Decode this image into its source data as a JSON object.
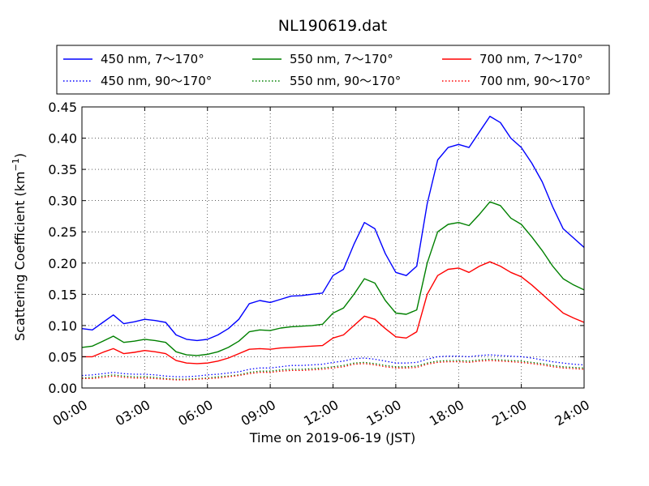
{
  "chart_data": {
    "type": "line",
    "title": "NL190619.dat",
    "xlabel": "Time on 2019-06-19 (JST)",
    "ylabel_main": "Scattering Coefficient (km",
    "ylabel_exp": "−1",
    "ylabel_close": ")",
    "xlim": [
      0,
      24
    ],
    "ylim": [
      0,
      0.45
    ],
    "x_ticks": [
      "00:00",
      "03:00",
      "06:00",
      "09:00",
      "12:00",
      "15:00",
      "18:00",
      "21:00",
      "24:00"
    ],
    "y_ticks": [
      "0.00",
      "0.05",
      "0.10",
      "0.15",
      "0.20",
      "0.25",
      "0.30",
      "0.35",
      "0.40",
      "0.45"
    ],
    "grid": true,
    "legend_position": "top",
    "x": [
      0,
      0.5,
      1,
      1.5,
      2,
      2.5,
      3,
      3.5,
      4,
      4.5,
      5,
      5.5,
      6,
      6.5,
      7,
      7.5,
      8,
      8.5,
      9,
      9.5,
      10,
      10.5,
      11,
      11.5,
      12,
      12.5,
      13,
      13.5,
      14,
      14.5,
      15,
      15.5,
      16,
      16.5,
      17,
      17.5,
      18,
      18.5,
      19,
      19.5,
      20,
      20.5,
      21,
      21.5,
      22,
      22.5,
      23,
      23.5,
      24
    ],
    "series": [
      {
        "name": "450 nm, 7～170°",
        "color": "#0000ff",
        "style": "solid",
        "values": [
          0.095,
          0.093,
          0.105,
          0.117,
          0.103,
          0.106,
          0.11,
          0.108,
          0.105,
          0.085,
          0.078,
          0.076,
          0.078,
          0.085,
          0.095,
          0.11,
          0.135,
          0.14,
          0.137,
          0.142,
          0.147,
          0.148,
          0.15,
          0.152,
          0.18,
          0.19,
          0.23,
          0.265,
          0.255,
          0.215,
          0.185,
          0.18,
          0.195,
          0.295,
          0.365,
          0.385,
          0.39,
          0.385,
          0.41,
          0.435,
          0.425,
          0.4,
          0.385,
          0.36,
          0.33,
          0.29,
          0.255,
          0.24,
          0.225
        ]
      },
      {
        "name": "450 nm, 90～170°",
        "color": "#0000ff",
        "style": "dotted",
        "values": [
          0.02,
          0.021,
          0.023,
          0.025,
          0.023,
          0.022,
          0.022,
          0.021,
          0.019,
          0.018,
          0.018,
          0.019,
          0.021,
          0.022,
          0.024,
          0.026,
          0.03,
          0.032,
          0.032,
          0.034,
          0.036,
          0.036,
          0.037,
          0.038,
          0.041,
          0.043,
          0.047,
          0.048,
          0.046,
          0.043,
          0.04,
          0.04,
          0.041,
          0.046,
          0.05,
          0.051,
          0.051,
          0.05,
          0.052,
          0.053,
          0.052,
          0.051,
          0.05,
          0.048,
          0.045,
          0.042,
          0.04,
          0.038,
          0.037
        ]
      },
      {
        "name": "550 nm, 7～170°",
        "color": "#008000",
        "style": "solid",
        "values": [
          0.065,
          0.067,
          0.075,
          0.083,
          0.073,
          0.075,
          0.078,
          0.076,
          0.073,
          0.058,
          0.053,
          0.052,
          0.054,
          0.058,
          0.065,
          0.075,
          0.09,
          0.093,
          0.092,
          0.096,
          0.098,
          0.099,
          0.1,
          0.102,
          0.12,
          0.128,
          0.15,
          0.175,
          0.168,
          0.14,
          0.12,
          0.118,
          0.125,
          0.2,
          0.25,
          0.262,
          0.265,
          0.26,
          0.278,
          0.298,
          0.292,
          0.272,
          0.262,
          0.242,
          0.22,
          0.195,
          0.175,
          0.165,
          0.157
        ]
      },
      {
        "name": "550 nm, 90～170°",
        "color": "#008000",
        "style": "dotted",
        "values": [
          0.016,
          0.017,
          0.019,
          0.021,
          0.019,
          0.018,
          0.018,
          0.017,
          0.015,
          0.014,
          0.014,
          0.015,
          0.016,
          0.018,
          0.019,
          0.021,
          0.025,
          0.027,
          0.027,
          0.029,
          0.03,
          0.03,
          0.031,
          0.032,
          0.034,
          0.036,
          0.04,
          0.041,
          0.039,
          0.036,
          0.034,
          0.034,
          0.035,
          0.04,
          0.043,
          0.044,
          0.044,
          0.043,
          0.045,
          0.046,
          0.045,
          0.044,
          0.043,
          0.041,
          0.039,
          0.036,
          0.034,
          0.033,
          0.032
        ]
      },
      {
        "name": "700 nm, 7～170°",
        "color": "#ff0000",
        "style": "solid",
        "values": [
          0.05,
          0.05,
          0.057,
          0.063,
          0.055,
          0.057,
          0.06,
          0.058,
          0.055,
          0.044,
          0.04,
          0.039,
          0.04,
          0.043,
          0.048,
          0.055,
          0.062,
          0.063,
          0.062,
          0.064,
          0.065,
          0.066,
          0.067,
          0.068,
          0.08,
          0.085,
          0.1,
          0.115,
          0.11,
          0.095,
          0.082,
          0.08,
          0.09,
          0.15,
          0.18,
          0.19,
          0.192,
          0.185,
          0.195,
          0.202,
          0.195,
          0.185,
          0.178,
          0.165,
          0.15,
          0.135,
          0.12,
          0.112,
          0.105
        ]
      },
      {
        "name": "700 nm, 90～170°",
        "color": "#ff0000",
        "style": "dotted",
        "values": [
          0.015,
          0.015,
          0.017,
          0.019,
          0.017,
          0.016,
          0.016,
          0.015,
          0.014,
          0.013,
          0.013,
          0.014,
          0.015,
          0.016,
          0.018,
          0.02,
          0.023,
          0.025,
          0.025,
          0.027,
          0.028,
          0.028,
          0.029,
          0.03,
          0.032,
          0.034,
          0.038,
          0.039,
          0.037,
          0.034,
          0.032,
          0.032,
          0.033,
          0.038,
          0.041,
          0.042,
          0.042,
          0.041,
          0.043,
          0.044,
          0.043,
          0.042,
          0.041,
          0.039,
          0.037,
          0.034,
          0.032,
          0.031,
          0.03
        ]
      }
    ]
  }
}
